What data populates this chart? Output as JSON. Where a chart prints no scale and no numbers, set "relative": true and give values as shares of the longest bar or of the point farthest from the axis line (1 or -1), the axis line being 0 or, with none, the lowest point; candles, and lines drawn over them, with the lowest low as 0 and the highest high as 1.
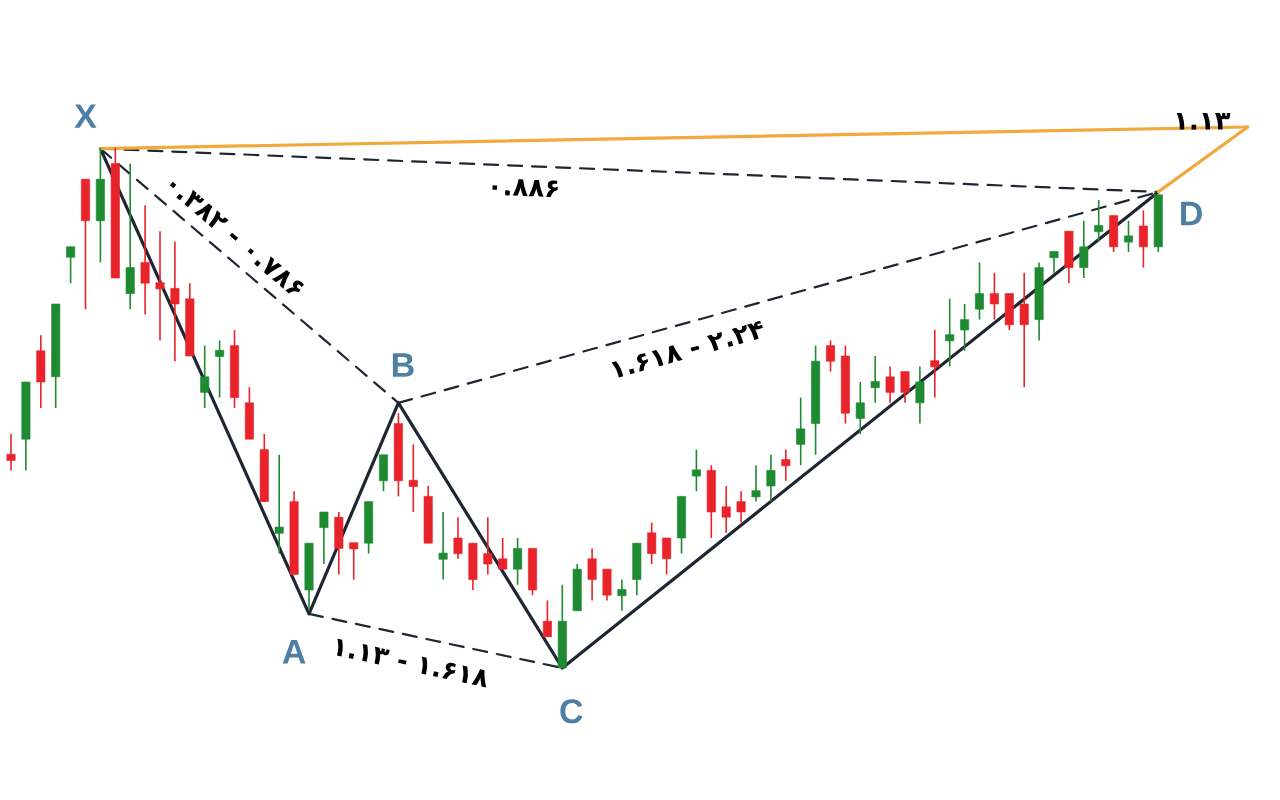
{
  "chart_data": [
    {
      "type": "candlestick",
      "relative": true,
      "categories": [
        null,
        null,
        null,
        null,
        null,
        null,
        null,
        null,
        null,
        null,
        null,
        null,
        null,
        null,
        null,
        null,
        null,
        null,
        null,
        null,
        null,
        null,
        null,
        null,
        null,
        null,
        null,
        null,
        null,
        null,
        null,
        null,
        null,
        null,
        null,
        null,
        null,
        null,
        null,
        null,
        null,
        null,
        null,
        null,
        null,
        null,
        null,
        null,
        null,
        null,
        null,
        null,
        null,
        null,
        null,
        null,
        null,
        null,
        null,
        null,
        null,
        null,
        null,
        null,
        null,
        null,
        null,
        null,
        null,
        null,
        null,
        null,
        null,
        null,
        null,
        null,
        null,
        null
      ],
      "ohlc": [
        [
          0.41,
          0.45,
          0.38,
          0.4
        ],
        [
          0.44,
          0.55,
          0.38,
          0.55
        ],
        [
          0.61,
          0.64,
          0.5,
          0.55
        ],
        [
          0.56,
          0.7,
          0.5,
          0.7
        ],
        [
          0.79,
          0.81,
          0.74,
          0.81
        ],
        [
          0.94,
          0.94,
          0.69,
          0.86
        ],
        [
          0.86,
          1.0,
          0.78,
          0.94
        ],
        [
          0.97,
          1.0,
          0.75,
          0.75
        ],
        [
          0.72,
          0.97,
          0.69,
          0.77
        ],
        [
          0.78,
          0.89,
          0.68,
          0.74
        ],
        [
          0.74,
          0.84,
          0.63,
          0.73
        ],
        [
          0.73,
          0.82,
          0.59,
          0.7
        ],
        [
          0.71,
          0.74,
          0.6,
          0.6
        ],
        [
          0.53,
          0.62,
          0.5,
          0.56
        ],
        [
          0.6,
          0.63,
          0.52,
          0.61
        ],
        [
          0.62,
          0.65,
          0.5,
          0.52
        ],
        [
          0.51,
          0.54,
          0.44,
          0.44
        ],
        [
          0.42,
          0.45,
          0.32,
          0.32
        ],
        [
          0.26,
          0.41,
          0.22,
          0.27
        ],
        [
          0.32,
          0.34,
          0.18,
          0.18
        ],
        [
          0.15,
          0.24,
          0.11,
          0.24
        ],
        [
          0.27,
          0.3,
          0.2,
          0.3
        ],
        [
          0.29,
          0.3,
          0.18,
          0.23
        ],
        [
          0.24,
          0.24,
          0.17,
          0.23
        ],
        [
          0.24,
          0.32,
          0.22,
          0.32
        ],
        [
          0.36,
          0.41,
          0.34,
          0.41
        ],
        [
          0.47,
          0.49,
          0.33,
          0.36
        ],
        [
          0.36,
          0.43,
          0.3,
          0.35
        ],
        [
          0.33,
          0.35,
          0.24,
          0.24
        ],
        [
          0.21,
          0.3,
          0.17,
          0.22
        ],
        [
          0.25,
          0.29,
          0.21,
          0.22
        ],
        [
          0.24,
          0.24,
          0.15,
          0.17
        ],
        [
          0.22,
          0.29,
          0.18,
          0.2
        ],
        [
          0.21,
          0.25,
          0.19,
          0.19
        ],
        [
          0.19,
          0.25,
          0.16,
          0.23
        ],
        [
          0.23,
          0.23,
          0.14,
          0.15
        ],
        [
          0.09,
          0.13,
          0.06,
          0.06
        ],
        [
          0.0,
          0.16,
          0.0,
          0.09
        ],
        [
          0.11,
          0.2,
          0.11,
          0.19
        ],
        [
          0.21,
          0.23,
          0.13,
          0.17
        ],
        [
          0.19,
          0.19,
          0.13,
          0.14
        ],
        [
          0.14,
          0.17,
          0.11,
          0.15
        ],
        [
          0.17,
          0.24,
          0.14,
          0.24
        ],
        [
          0.26,
          0.28,
          0.2,
          0.22
        ],
        [
          0.25,
          0.25,
          0.18,
          0.21
        ],
        [
          0.25,
          0.33,
          0.22,
          0.33
        ],
        [
          0.37,
          0.42,
          0.34,
          0.38
        ],
        [
          0.38,
          0.39,
          0.25,
          0.3
        ],
        [
          0.31,
          0.35,
          0.26,
          0.29
        ],
        [
          0.32,
          0.34,
          0.28,
          0.3
        ],
        [
          0.33,
          0.39,
          0.32,
          0.34
        ],
        [
          0.35,
          0.41,
          0.32,
          0.38
        ],
        [
          0.4,
          0.42,
          0.36,
          0.39
        ],
        [
          0.43,
          0.52,
          0.39,
          0.46
        ],
        [
          0.47,
          0.62,
          0.41,
          0.59
        ],
        [
          0.62,
          0.63,
          0.57,
          0.59
        ],
        [
          0.6,
          0.62,
          0.47,
          0.49
        ],
        [
          0.48,
          0.55,
          0.45,
          0.51
        ],
        [
          0.54,
          0.6,
          0.51,
          0.55
        ],
        [
          0.56,
          0.58,
          0.51,
          0.53
        ],
        [
          0.57,
          0.57,
          0.51,
          0.53
        ],
        [
          0.51,
          0.58,
          0.47,
          0.55
        ],
        [
          0.59,
          0.65,
          0.52,
          0.58
        ],
        [
          0.63,
          0.71,
          0.58,
          0.64
        ],
        [
          0.65,
          0.7,
          0.61,
          0.67
        ],
        [
          0.69,
          0.78,
          0.67,
          0.72
        ],
        [
          0.72,
          0.76,
          0.67,
          0.7
        ],
        [
          0.72,
          0.72,
          0.65,
          0.66
        ],
        [
          0.7,
          0.76,
          0.54,
          0.66
        ],
        [
          0.67,
          0.78,
          0.63,
          0.77
        ],
        [
          0.79,
          0.8,
          0.76,
          0.8
        ],
        [
          0.84,
          0.84,
          0.74,
          0.77
        ],
        [
          0.77,
          0.86,
          0.75,
          0.81
        ],
        [
          0.84,
          0.9,
          0.82,
          0.85
        ],
        [
          0.87,
          0.87,
          0.8,
          0.81
        ],
        [
          0.82,
          0.86,
          0.8,
          0.83
        ],
        [
          0.85,
          0.88,
          0.77,
          0.81
        ],
        [
          0.81,
          0.91,
          0.8,
          0.91
        ]
      ],
      "colors": [
        "#e8232a",
        "#1e8a32",
        "#e8232a",
        "#1e8a32",
        "#1e8a32",
        "#e8232a",
        "#1e8a32",
        "#e8232a",
        "#1e8a32",
        "#e8232a",
        "#e8232a",
        "#e8232a",
        "#e8232a",
        "#1e8a32",
        "#1e8a32",
        "#e8232a",
        "#e8232a",
        "#e8232a",
        "#1e8a32",
        "#e8232a",
        "#1e8a32",
        "#1e8a32",
        "#e8232a",
        "#e8232a",
        "#1e8a32",
        "#1e8a32",
        "#e8232a",
        "#e8232a",
        "#e8232a",
        "#1e8a32",
        "#e8232a",
        "#e8232a",
        "#e8232a",
        "#e8232a",
        "#1e8a32",
        "#e8232a",
        "#e8232a",
        "#1e8a32",
        "#1e8a32",
        "#e8232a",
        "#e8232a",
        "#1e8a32",
        "#1e8a32",
        "#e8232a",
        "#e8232a",
        "#1e8a32",
        "#1e8a32",
        "#e8232a",
        "#e8232a",
        "#e8232a",
        "#1e8a32",
        "#1e8a32",
        "#e8232a",
        "#1e8a32",
        "#1e8a32",
        "#e8232a",
        "#e8232a",
        "#1e8a32",
        "#1e8a32",
        "#e8232a",
        "#e8232a",
        "#1e8a32",
        "#e8232a",
        "#1e8a32",
        "#1e8a32",
        "#1e8a32",
        "#e8232a",
        "#e8232a",
        "#e8232a",
        "#1e8a32",
        "#1e8a32",
        "#e8232a",
        "#1e8a32",
        "#1e8a32",
        "#e8232a",
        "#1e8a32",
        "#e8232a",
        "#1e8a32"
      ]
    },
    {
      "type": "line",
      "relative": true,
      "categories": [
        null,
        null,
        null,
        null,
        null,
        null,
        null,
        null,
        null,
        null,
        null,
        null,
        null,
        null,
        null,
        null,
        null,
        null,
        null,
        null,
        null,
        null,
        null,
        null,
        null,
        null,
        null,
        null,
        null,
        null,
        null,
        null,
        null,
        null,
        null,
        null,
        null,
        null,
        null,
        null,
        null,
        null,
        null,
        null,
        null,
        null,
        null,
        null,
        null,
        null,
        null,
        null,
        null,
        null,
        null,
        null,
        null,
        null,
        null,
        null,
        null,
        null,
        null,
        null,
        null,
        null,
        null,
        null,
        null,
        null,
        null,
        null,
        null,
        null,
        null,
        null,
        null,
        null,
        null,
        null,
        null,
        null,
        null,
        null,
        null
      ],
      "series": [
        {
          "color": "#1f2633",
          "line_style": "solid",
          "values": [
            null,
            null,
            null,
            null,
            null,
            null,
            0.96,
            null,
            null,
            null,
            null,
            null,
            null,
            null,
            null,
            null,
            null,
            null,
            null,
            null,
            0.1,
            null,
            null,
            null,
            null,
            null,
            0.49,
            null,
            null,
            null,
            null,
            null,
            null,
            null,
            null,
            null,
            null,
            0.0,
            null,
            null,
            null,
            null,
            null,
            null,
            null,
            null,
            null,
            null,
            null,
            null,
            null,
            null,
            null,
            null,
            null,
            null,
            null,
            null,
            null,
            null,
            null,
            null,
            null,
            null,
            null,
            null,
            null,
            null,
            null,
            null,
            null,
            null,
            null,
            null,
            null,
            null,
            null,
            0.88,
            null,
            null,
            null,
            null,
            null,
            null,
            null
          ]
        },
        {
          "color": "#1f2633",
          "line_style": "dashed",
          "values": [
            null,
            null,
            null,
            null,
            null,
            null,
            0.96,
            null,
            null,
            null,
            null,
            null,
            null,
            null,
            null,
            null,
            null,
            null,
            null,
            null,
            null,
            null,
            null,
            null,
            null,
            null,
            0.49,
            null,
            null,
            null,
            null,
            null,
            null,
            null,
            null,
            null,
            null,
            null,
            null,
            null,
            null,
            null,
            null,
            null,
            null,
            null,
            null,
            null,
            null,
            null,
            null,
            null,
            null,
            null,
            null,
            null,
            null,
            null,
            null,
            null,
            null,
            null,
            null,
            null,
            null,
            null,
            null,
            null,
            null,
            null,
            null,
            null,
            null,
            null,
            null,
            null,
            null,
            null,
            null,
            null,
            null,
            null,
            null,
            null,
            null
          ]
        },
        {
          "color": "#1f2633",
          "line_style": "dashed",
          "values": [
            null,
            null,
            null,
            null,
            null,
            null,
            0.96,
            null,
            null,
            null,
            null,
            null,
            null,
            null,
            null,
            null,
            null,
            null,
            null,
            null,
            null,
            null,
            null,
            null,
            null,
            null,
            null,
            null,
            null,
            null,
            null,
            null,
            null,
            null,
            null,
            null,
            null,
            null,
            null,
            null,
            null,
            null,
            null,
            null,
            null,
            null,
            null,
            null,
            null,
            null,
            null,
            null,
            null,
            null,
            null,
            null,
            null,
            null,
            null,
            null,
            null,
            null,
            null,
            null,
            null,
            null,
            null,
            null,
            null,
            null,
            null,
            null,
            null,
            null,
            null,
            null,
            null,
            0.88,
            null,
            null,
            null,
            null,
            null,
            null,
            null
          ]
        },
        {
          "color": "#1f2633",
          "line_style": "dashed",
          "values": [
            null,
            null,
            null,
            null,
            null,
            null,
            null,
            null,
            null,
            null,
            null,
            null,
            null,
            null,
            null,
            null,
            null,
            null,
            null,
            null,
            null,
            null,
            null,
            null,
            null,
            null,
            0.49,
            null,
            null,
            null,
            null,
            null,
            null,
            null,
            null,
            null,
            null,
            null,
            null,
            null,
            null,
            null,
            null,
            null,
            null,
            null,
            null,
            null,
            null,
            null,
            null,
            null,
            null,
            null,
            null,
            null,
            null,
            null,
            null,
            null,
            null,
            null,
            null,
            null,
            null,
            null,
            null,
            null,
            null,
            null,
            null,
            null,
            null,
            null,
            null,
            null,
            null,
            0.88,
            null,
            null,
            null,
            null,
            null,
            null,
            null
          ]
        },
        {
          "color": "#1f2633",
          "line_style": "dashed",
          "values": [
            null,
            null,
            null,
            null,
            null,
            null,
            null,
            null,
            null,
            null,
            null,
            null,
            null,
            null,
            null,
            null,
            null,
            null,
            null,
            null,
            0.1,
            null,
            null,
            null,
            null,
            null,
            null,
            null,
            null,
            null,
            null,
            null,
            null,
            null,
            null,
            null,
            null,
            0.0,
            null,
            null,
            null,
            null,
            null,
            null,
            null,
            null,
            null,
            null,
            null,
            null,
            null,
            null,
            null,
            null,
            null,
            null,
            null,
            null,
            null,
            null,
            null,
            null,
            null,
            null,
            null,
            null,
            null,
            null,
            null,
            null,
            null,
            null,
            null,
            null,
            null,
            null,
            null,
            null,
            null,
            null,
            null,
            null,
            null,
            null,
            null
          ]
        },
        {
          "color": "#f2a93b",
          "line_style": "solid",
          "values": [
            null,
            null,
            null,
            null,
            null,
            null,
            0.96,
            null,
            null,
            null,
            null,
            null,
            null,
            null,
            null,
            null,
            null,
            null,
            null,
            null,
            null,
            null,
            null,
            null,
            null,
            null,
            null,
            null,
            null,
            null,
            null,
            null,
            null,
            null,
            null,
            null,
            null,
            null,
            null,
            null,
            null,
            null,
            null,
            null,
            null,
            null,
            null,
            null,
            null,
            null,
            null,
            null,
            null,
            null,
            null,
            null,
            null,
            null,
            null,
            null,
            null,
            null,
            null,
            null,
            null,
            null,
            null,
            null,
            null,
            null,
            null,
            null,
            null,
            null,
            null,
            null,
            null,
            null,
            null,
            null,
            null,
            null,
            null,
            1.0,
            null
          ]
        },
        {
          "color": "#f2a93b",
          "line_style": "solid",
          "values": [
            null,
            null,
            null,
            null,
            null,
            null,
            null,
            null,
            null,
            null,
            null,
            null,
            null,
            null,
            null,
            null,
            null,
            null,
            null,
            null,
            null,
            null,
            null,
            null,
            null,
            null,
            null,
            null,
            null,
            null,
            null,
            null,
            null,
            null,
            null,
            null,
            null,
            null,
            null,
            null,
            null,
            null,
            null,
            null,
            null,
            null,
            null,
            null,
            null,
            null,
            null,
            null,
            null,
            null,
            null,
            null,
            null,
            null,
            null,
            null,
            null,
            null,
            null,
            null,
            null,
            null,
            null,
            null,
            null,
            null,
            null,
            null,
            null,
            null,
            null,
            null,
            null,
            0.88,
            null,
            null,
            null,
            null,
            null,
            1.0,
            null
          ]
        }
      ],
      "annotations": [
        "X",
        "A",
        "B",
        "C",
        "D",
        "۰.۸۸۶",
        "۰.۳۸۲ - ۰.۷۸۶",
        "۱.۶۱۸ - ۲.۲۴",
        "۱.۱۳ - ۱.۶۱۸",
        "۱.۱۳"
      ]
    }
  ]
}
